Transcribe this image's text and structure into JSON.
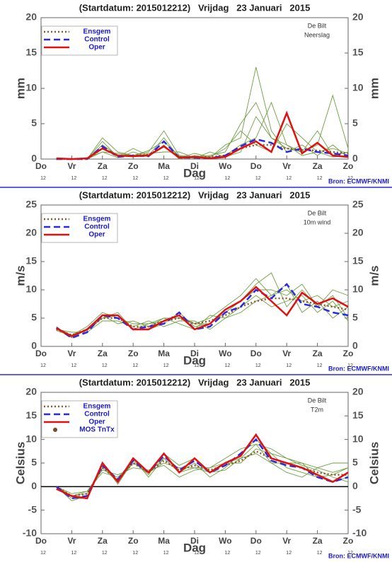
{
  "chart_data": [
    {
      "type": "line",
      "title": "(Startdatum: 2015012212)   Vrijdag   23 Januari   2015",
      "annotations": [
        "De Bilt",
        "Neerslag"
      ],
      "ylabel": "mm",
      "xlabel": "Dag",
      "source": "Bron: ECMWF/KNMI",
      "x": [
        12,
        24,
        36,
        48,
        60,
        72,
        84,
        96,
        108,
        120,
        132,
        144,
        156,
        168,
        180,
        192,
        204,
        216,
        228,
        240
      ],
      "xlim": [
        0,
        240
      ],
      "xticks": [
        {
          "value": 0,
          "label": "Do"
        },
        {
          "value": 24,
          "label": "Vr"
        },
        {
          "value": 48,
          "label": "Za"
        },
        {
          "value": 72,
          "label": "Zo"
        },
        {
          "value": 96,
          "label": "Ma"
        },
        {
          "value": 120,
          "label": "Di"
        },
        {
          "value": 144,
          "label": "Wo"
        },
        {
          "value": 168,
          "label": "Do"
        },
        {
          "value": 192,
          "label": "Vr"
        },
        {
          "value": 216,
          "label": "Za"
        },
        {
          "value": 240,
          "label": "Zo"
        }
      ],
      "xtick_sublabel": "12",
      "ylim": [
        0,
        20
      ],
      "yticks": [
        0,
        5,
        10,
        15,
        20
      ],
      "zero_line": false,
      "member_color": "#6e9e40",
      "members": [
        [
          0,
          0,
          0,
          3,
          1,
          0.5,
          1,
          4,
          0.5,
          0.3,
          0.5,
          1,
          5,
          8,
          3,
          2,
          1,
          4,
          0.5,
          1
        ],
        [
          0,
          0,
          0.2,
          1,
          0.2,
          1,
          0.3,
          2,
          0,
          0.5,
          0.2,
          2,
          3,
          13,
          4,
          1,
          2,
          0.5,
          2,
          0.2
        ],
        [
          0,
          0,
          0,
          2,
          0.5,
          0.3,
          0.8,
          1,
          1,
          0.2,
          0.1,
          0.5,
          2,
          3,
          8,
          2,
          0.5,
          1,
          0.3,
          0.5
        ],
        [
          0,
          0,
          0,
          2.5,
          0.3,
          1.5,
          0.5,
          3,
          0.2,
          0.8,
          0.3,
          1.5,
          4,
          2,
          1,
          5,
          3,
          1,
          1.5,
          0.8
        ],
        [
          0,
          0,
          0,
          1,
          0.8,
          0.5,
          1.2,
          2.5,
          0.4,
          0.1,
          1,
          0.3,
          1,
          6,
          3,
          1.5,
          1,
          2,
          9,
          1.5
        ]
      ],
      "series": [
        {
          "name": "Ensgem",
          "color": "#8b5a2b",
          "style": "dotted",
          "values": [
            0,
            0,
            0,
            1.5,
            0.4,
            0.5,
            0.6,
            1.8,
            0.3,
            0.3,
            0.3,
            0.5,
            1.5,
            2.0,
            2.0,
            1.5,
            1.3,
            1.2,
            1.0,
            0.8
          ]
        },
        {
          "name": "Control",
          "color": "#2a2ae0",
          "style": "dashed",
          "values": [
            0,
            0,
            0,
            1.8,
            0.3,
            0.5,
            0.4,
            2.5,
            0.2,
            0.2,
            0.1,
            0.5,
            1.8,
            2.8,
            2.3,
            1.0,
            1.5,
            1.0,
            0.8,
            0.5
          ]
        },
        {
          "name": "Oper",
          "color": "#e01010",
          "style": "solid",
          "values": [
            0.1,
            0,
            0.1,
            1.5,
            0.5,
            0.4,
            0.5,
            1.8,
            0.2,
            0.3,
            0.1,
            0.3,
            1.5,
            2.5,
            1.0,
            6.5,
            0.8,
            2.3,
            0.5,
            0.3
          ]
        }
      ]
    },
    {
      "type": "line",
      "title": "(Startdatum: 2015012212)   Vrijdag   23 Januari   2015",
      "annotations": [
        "De Bilt",
        "10m wind"
      ],
      "ylabel": "m/s",
      "xlabel": "Dag",
      "source": "Bron: ECMWF/KNMI",
      "x": [
        12,
        24,
        36,
        48,
        60,
        72,
        84,
        96,
        108,
        120,
        132,
        144,
        156,
        168,
        180,
        192,
        204,
        216,
        228,
        240
      ],
      "xlim": [
        0,
        240
      ],
      "xticks": [
        {
          "value": 0,
          "label": "Do"
        },
        {
          "value": 24,
          "label": "Vr"
        },
        {
          "value": 48,
          "label": "Za"
        },
        {
          "value": 72,
          "label": "Zo"
        },
        {
          "value": 96,
          "label": "Ma"
        },
        {
          "value": 120,
          "label": "Di"
        },
        {
          "value": 144,
          "label": "Wo"
        },
        {
          "value": 168,
          "label": "Do"
        },
        {
          "value": 192,
          "label": "Vr"
        },
        {
          "value": 216,
          "label": "Za"
        },
        {
          "value": 240,
          "label": "Zo"
        }
      ],
      "xtick_sublabel": "12",
      "ylim": [
        0,
        25
      ],
      "yticks": [
        0,
        5,
        10,
        15,
        20,
        25
      ],
      "zero_line": false,
      "member_color": "#6e9e40",
      "members": [
        [
          3,
          2,
          3.5,
          6,
          5,
          4,
          4,
          5,
          5,
          4,
          5,
          7,
          9,
          12,
          9,
          10,
          8,
          9,
          7,
          8
        ],
        [
          3.5,
          1.5,
          3,
          5,
          6,
          3,
          3,
          4,
          6,
          3.5,
          4,
          6,
          8,
          11,
          13,
          7,
          10,
          7,
          9,
          5
        ],
        [
          3,
          2.5,
          2.5,
          4.5,
          4.5,
          3.5,
          4.5,
          3.5,
          4.5,
          4.5,
          3,
          5,
          6,
          8,
          9,
          11,
          6,
          8,
          5,
          7
        ],
        [
          3.2,
          2,
          3,
          5.5,
          4,
          4.5,
          3.5,
          5,
          4,
          3,
          5.5,
          5,
          7,
          9,
          7,
          8,
          9,
          6,
          8,
          4.5
        ],
        [
          2.8,
          1.8,
          2.8,
          5,
          5.5,
          3,
          4,
          4.5,
          5.5,
          4,
          4,
          6.5,
          8,
          10,
          10,
          9,
          11,
          7,
          10,
          9
        ]
      ],
      "series": [
        {
          "name": "Ensgem",
          "color": "#8b5a2b",
          "style": "dotted",
          "values": [
            3,
            2,
            3,
            5,
            5,
            3.5,
            3.5,
            4.5,
            5,
            4,
            4.5,
            5.5,
            7,
            8,
            8.5,
            8.5,
            8,
            7.5,
            7,
            6.5
          ]
        },
        {
          "name": "Control",
          "color": "#2a2ae0",
          "style": "dashed",
          "values": [
            3.3,
            1.5,
            2.5,
            5.5,
            5,
            3,
            3.5,
            4,
            6,
            3,
            3.5,
            6,
            7,
            10,
            8.5,
            11,
            7.5,
            7,
            6,
            5.5
          ]
        },
        {
          "name": "Oper",
          "color": "#e01010",
          "style": "solid",
          "values": [
            3.2,
            1.8,
            3,
            5.5,
            5.5,
            3,
            3,
            4.5,
            5.5,
            3,
            4,
            6.5,
            8,
            10.5,
            8,
            5.5,
            9.5,
            7.5,
            8.5,
            7
          ]
        }
      ]
    },
    {
      "type": "line",
      "title": "(Startdatum: 2015012212)   Vrijdag   23 Januari   2015",
      "annotations": [
        "De Bilt",
        "T2m"
      ],
      "ylabel": "Celsius",
      "xlabel": "Dag",
      "source": "Bron: ECMWF/KNMI",
      "x": [
        12,
        24,
        36,
        48,
        60,
        72,
        84,
        96,
        108,
        120,
        132,
        144,
        156,
        168,
        180,
        192,
        204,
        216,
        228,
        240
      ],
      "xlim": [
        0,
        240
      ],
      "xticks": [
        {
          "value": 0,
          "label": "Do"
        },
        {
          "value": 24,
          "label": "Vr"
        },
        {
          "value": 48,
          "label": "Za"
        },
        {
          "value": 72,
          "label": "Zo"
        },
        {
          "value": 96,
          "label": "Ma"
        },
        {
          "value": 120,
          "label": "Di"
        },
        {
          "value": 144,
          "label": "Wo"
        },
        {
          "value": 168,
          "label": "Do"
        },
        {
          "value": 192,
          "label": "Vr"
        },
        {
          "value": 216,
          "label": "Za"
        },
        {
          "value": 240,
          "label": "Zo"
        }
      ],
      "xtick_sublabel": "12",
      "ylim": [
        -10,
        20
      ],
      "yticks": [
        -10,
        -5,
        0,
        5,
        10,
        15,
        20
      ],
      "zero_line": true,
      "member_color": "#6e9e40",
      "members": [
        [
          0,
          -2,
          -1,
          3,
          2,
          5,
          3,
          5,
          4,
          4,
          3,
          5,
          6,
          9,
          8,
          6,
          5,
          4,
          3,
          4
        ],
        [
          0,
          -3,
          -2,
          4,
          1,
          6,
          2,
          6,
          3,
          5,
          2,
          4,
          7,
          10,
          7,
          4,
          3,
          2,
          1,
          2
        ],
        [
          0,
          -1.5,
          -1,
          3.5,
          2.5,
          4,
          3.5,
          4.5,
          2,
          3.5,
          4,
          5,
          5,
          8,
          7,
          6,
          4.5,
          3.5,
          2,
          1
        ],
        [
          0,
          -2.5,
          -2.5,
          5,
          0.5,
          5.5,
          2.5,
          7,
          4.5,
          6,
          3,
          3.5,
          6,
          7,
          5,
          5,
          5,
          2,
          2.5,
          4
        ],
        [
          0,
          -2,
          -1.5,
          4.5,
          1,
          5,
          3,
          6,
          3,
          4,
          4,
          6,
          8,
          9,
          5,
          3,
          2,
          4,
          5,
          5
        ]
      ],
      "series": [
        {
          "name": "Ensgem",
          "color": "#8b5a2b",
          "style": "dotted",
          "values": [
            0,
            -2,
            -1.5,
            4,
            1.5,
            5,
            3,
            5.5,
            3.5,
            4.5,
            3.5,
            4.5,
            5.5,
            7.5,
            6,
            5,
            4,
            3,
            2.5,
            2.5
          ]
        },
        {
          "name": "Control",
          "color": "#2a2ae0",
          "style": "dashed",
          "values": [
            0,
            -2.5,
            -2,
            4.5,
            1.5,
            5.5,
            3,
            6.5,
            3.5,
            5.5,
            3,
            4.5,
            7,
            10,
            5.5,
            4.5,
            4,
            2,
            1,
            2
          ]
        },
        {
          "name": "Oper",
          "color": "#e01010",
          "style": "solid",
          "values": [
            -0.5,
            -2,
            -2.5,
            5,
            1,
            6,
            3,
            7,
            3,
            6,
            3,
            5,
            6.5,
            11,
            6,
            5,
            4,
            2.5,
            1,
            3
          ]
        }
      ],
      "extra_legend": {
        "name": "MOS TnTx",
        "color": "#7a4a20"
      }
    }
  ]
}
